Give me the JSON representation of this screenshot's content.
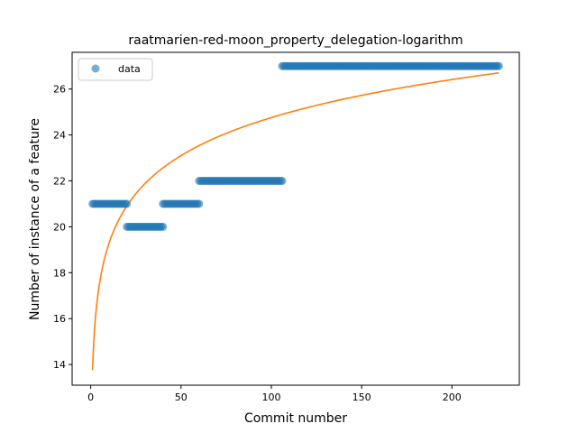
{
  "chart_data": {
    "type": "scatter",
    "title": "raatmarien-red-moon_property_delegation-logarithm",
    "xlabel": "Commit number",
    "ylabel": "Number of instance of a feature",
    "xlim": [
      -10.3,
      237.3
    ],
    "ylim": [
      13.1,
      27.6
    ],
    "xticks": [
      0,
      50,
      100,
      150,
      200
    ],
    "yticks": [
      14,
      16,
      18,
      20,
      22,
      24,
      26
    ],
    "grid": false,
    "legend": {
      "placement": "upper-left",
      "entries": [
        "data"
      ]
    },
    "colors": {
      "data": "#1f77b4",
      "fit": "#ff7f0e"
    },
    "series": [
      {
        "name": "data",
        "kind": "scatter",
        "segments": [
          {
            "x_start": 1,
            "x_end": 20,
            "y": 21
          },
          {
            "x_start": 20,
            "x_end": 40,
            "y": 20
          },
          {
            "x_start": 40,
            "x_end": 60,
            "y": 21
          },
          {
            "x_start": 60,
            "x_end": 106,
            "y": 22
          },
          {
            "x_start": 106,
            "x_end": 226,
            "y": 27
          }
        ]
      },
      {
        "kind": "line",
        "function": "logarithmic",
        "a": 13.75,
        "b": 2.39,
        "x_start": 1,
        "x_end": 226
      }
    ]
  }
}
